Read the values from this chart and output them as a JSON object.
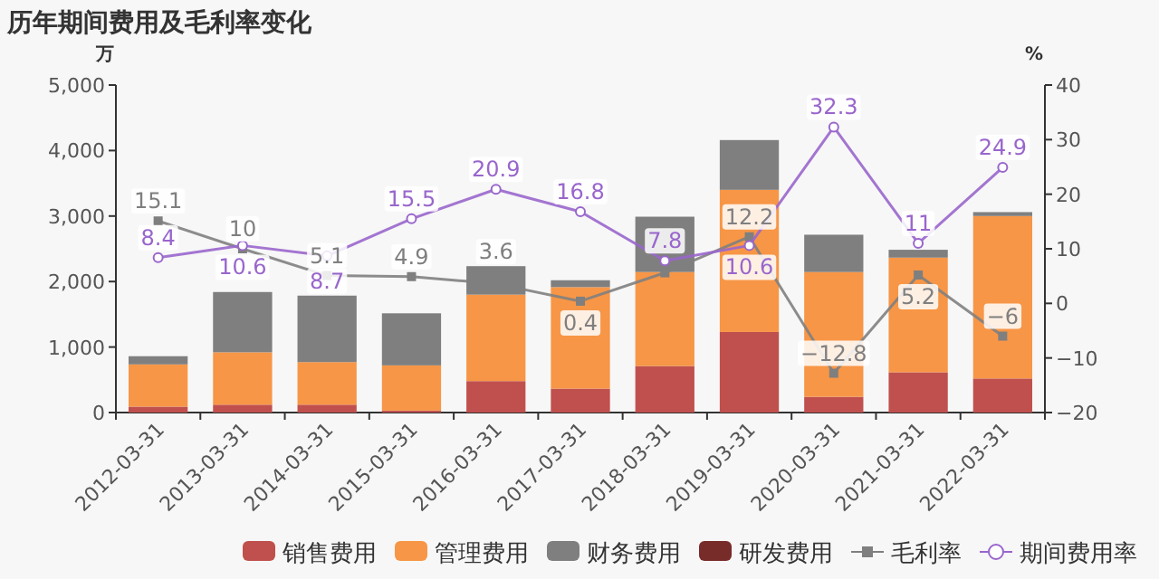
{
  "chart_data": {
    "type": "bar",
    "title": "历年期间费用及毛利率变化",
    "ylabel": "万",
    "y2label": "%",
    "stacked": true,
    "legend": "bottom",
    "grid": false,
    "categories": [
      "2012-03-31",
      "2013-03-31",
      "2014-03-31",
      "2015-03-31",
      "2016-03-31",
      "2017-03-31",
      "2018-03-31",
      "2019-03-31",
      "2020-03-31",
      "2021-03-31",
      "2022-03-31"
    ],
    "ylim": [
      0,
      5000
    ],
    "yticks": [
      {
        "value": 0,
        "label": "0"
      },
      {
        "value": 1000,
        "label": "1,000"
      },
      {
        "value": 2000,
        "label": "2,000"
      },
      {
        "value": 3000,
        "label": "3,000"
      },
      {
        "value": 4000,
        "label": "4,000"
      },
      {
        "value": 5000,
        "label": "5,000"
      }
    ],
    "y2lim": [
      -20,
      40
    ],
    "y2ticks": [
      -20,
      -10,
      0,
      10,
      20,
      30,
      40
    ],
    "series": [
      {
        "name": "销售费用",
        "color": "#c0504d",
        "values": [
          90,
          120,
          120,
          30,
          480,
          365,
          710,
          1230,
          240,
          615,
          520
        ]
      },
      {
        "name": "管理费用",
        "color": "#f79646",
        "values": [
          645,
          800,
          650,
          690,
          1320,
          1550,
          1435,
          2170,
          1905,
          1750,
          2480
        ]
      },
      {
        "name": "财务费用",
        "color": "#7f7f7f",
        "values": [
          125,
          920,
          1015,
          795,
          435,
          105,
          845,
          760,
          570,
          120,
          60
        ]
      },
      {
        "name": "研发费用",
        "color": "#772c2a",
        "values": [
          null,
          null,
          null,
          null,
          null,
          null,
          null,
          null,
          null,
          null,
          null
        ]
      },
      {
        "name": "毛利率",
        "type": "line",
        "axis": "y2",
        "marker": "square",
        "color": "#7f7f7f",
        "values": [
          15.1,
          10,
          5.1,
          4.9,
          3.6,
          0.4,
          5.6,
          12.2,
          -12.8,
          5.2,
          -6
        ],
        "value_labels": [
          "15.1",
          "10",
          "5.1",
          "4.9",
          "3.6",
          "0.4",
          null,
          "12.2",
          "−12.8",
          "5.2",
          "−6"
        ]
      },
      {
        "name": "期间费用率",
        "type": "line",
        "axis": "y2",
        "marker": "circle",
        "color": "#9966cc",
        "values": [
          8.4,
          10.6,
          8.7,
          15.5,
          20.9,
          16.8,
          7.8,
          10.6,
          32.3,
          11,
          24.9
        ],
        "value_labels": [
          "8.4",
          "10.6",
          "8.7",
          "15.5",
          "20.9",
          "16.8",
          "7.8",
          "10.6",
          "32.3",
          "11",
          "24.9"
        ]
      }
    ]
  }
}
